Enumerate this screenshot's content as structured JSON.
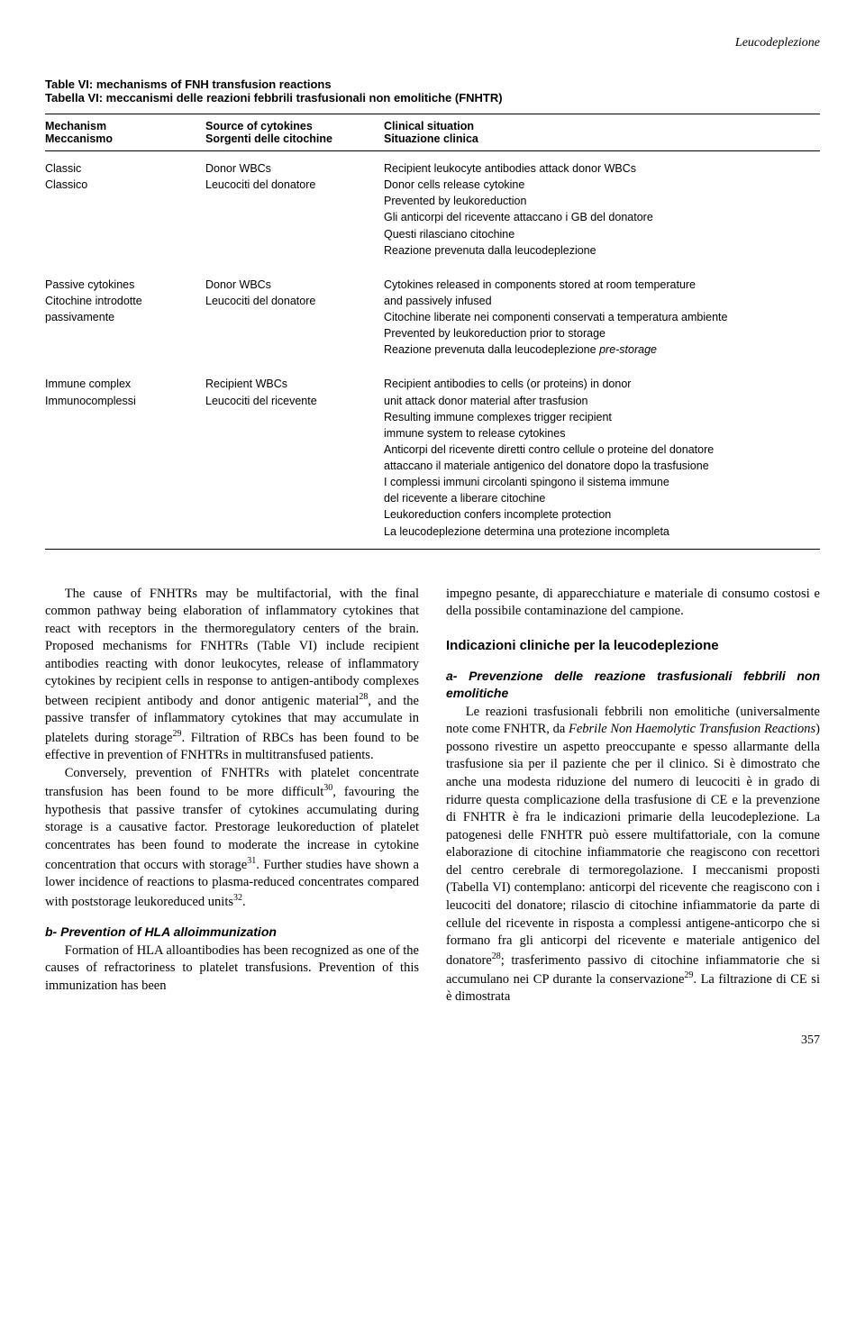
{
  "running_header": "Leucodeplezione",
  "table": {
    "title_en": "Table VI: mechanisms of FNH transfusion reactions",
    "title_it": "Tabella VI: meccanismi delle reazioni febbrili trasfusionali non emolitiche (FNHTR)",
    "headers": {
      "c1a": "Mechanism",
      "c1b": "Meccanismo",
      "c2a": "Source of cytokines",
      "c2b": "Sorgenti delle citochine",
      "c3a": "Clinical situation",
      "c3b": "Situazione clinica"
    },
    "rows": [
      {
        "c1": "Classic\nClassico",
        "c2": "Donor WBCs\nLeucociti del donatore",
        "c3": "Recipient leukocyte antibodies attack donor WBCs\nDonor cells release cytokine\nPrevented by leukoreduction\nGli anticorpi del ricevente attaccano i GB del donatore\nQuesti rilasciano citochine\nReazione prevenuta dalla leucodeplezione"
      },
      {
        "c1": "Passive cytokines\nCitochine introdotte\npassivamente",
        "c2": "Donor WBCs\nLeucociti del donatore",
        "c3": "Cytokines released in components stored at room temperature\nand passively infused\nCitochine liberate nei componenti conservati a temperatura ambiente\nPrevented by leukoreduction prior to storage\nReazione prevenuta dalla leucodeplezione",
        "c3_tail_ital": "pre-storage"
      },
      {
        "c1": "Immune complex\nImmunocomplessi",
        "c2": "Recipient WBCs\nLeucociti del ricevente",
        "c3": "Recipient antibodies to cells (or proteins) in donor\nunit attack donor material after trasfusion\nResulting immune complexes trigger recipient\nimmune system to release cytokines\nAnticorpi del ricevente diretti contro cellule o proteine del donatore\nattaccano il materiale antigenico del donatore dopo la trasfusione\nI complessi immuni circolanti spingono il sistema immune\ndel ricevente a liberare citochine\nLeukoreduction confers incomplete protection\nLa leucodeplezione determina una protezione incompleta"
      }
    ]
  },
  "left": {
    "p1_a": "The cause of FNHTRs may be multifactorial, with the final common pathway being elaboration of inflammatory cytokines that react with receptors in the thermoregulatory centers of the brain. Proposed mechanisms for FNHTRs (Table VI) include recipient antibodies reacting with donor leukocytes, release of inflammatory cytokines by recipient cells in response to antigen-antibody complexes between recipient antibody and donor antigenic material",
    "p1_sup1": "28",
    "p1_b": ", and the passive transfer of inflammatory cytokines that may accumulate in platelets during storage",
    "p1_sup2": "29",
    "p1_c": ". Filtration of RBCs has been found to be effective in prevention of FNHTRs in multitransfused patients.",
    "p2_a": "Conversely, prevention of FNHTRs with platelet concentrate transfusion has been found to be more difficult",
    "p2_sup1": "30",
    "p2_b": ", favouring the hypothesis that passive transfer of cytokines accumulating during storage is a causative factor. Prestorage leukoreduction of platelet concentrates has been found to moderate the increase in cytokine concentration that occurs with storage",
    "p2_sup2": "31",
    "p2_c": ". Further studies have shown a lower incidence of reactions to plasma-reduced concentrates compared with poststorage leukoreduced units",
    "p2_sup3": "32",
    "p2_d": ".",
    "h4": "b- Prevention of HLA alloimmunization",
    "p3": "Formation of HLA alloantibodies has been recognized as one of the causes of refractoriness to platelet transfusions. Prevention of this immunization has been"
  },
  "right": {
    "p1": "impegno pesante, di apparecchiature e materiale di consumo costosi e della possibile contaminazione del campione.",
    "h3": "Indicazioni cliniche per la leucodeplezione",
    "h4": "a- Prevenzione delle reazione trasfusionali febbrili non emolitiche",
    "p2_a": "Le reazioni trasfusionali febbrili non emolitiche (universalmente note come FNHTR, da ",
    "p2_ital": "Febrile Non Haemolytic Transfusion Reactions",
    "p2_b": ") possono rivestire un aspetto preoccupante e spesso allarmante della trasfusione sia per il paziente che per il clinico. Si è dimostrato che anche una modesta riduzione del numero di leucociti è in grado di ridurre questa complicazione della trasfusione di CE e la prevenzione di FNHTR è fra le indicazioni primarie della leucodeplezione. La patogenesi delle FNHTR può essere multifattoriale, con la comune elaborazione di citochine infiammatorie che reagiscono con recettori del centro cerebrale di termoregolazione. I meccanismi proposti (Tabella VI) contemplano: anticorpi del ricevente che reagiscono con i leucociti del donatore; rilascio di citochine infiammatorie da parte di cellule del ricevente in risposta a complessi antigene-anticorpo che si formano fra gli anticorpi del ricevente e materiale antigenico del donatore",
    "p2_sup1": "28",
    "p2_c": "; trasferimento passivo di citochine infiammatorie che si accumulano nei CP durante la conservazione",
    "p2_sup2": "29",
    "p2_d": ". La filtrazione di CE si è dimostrata"
  },
  "pagenum": "357"
}
